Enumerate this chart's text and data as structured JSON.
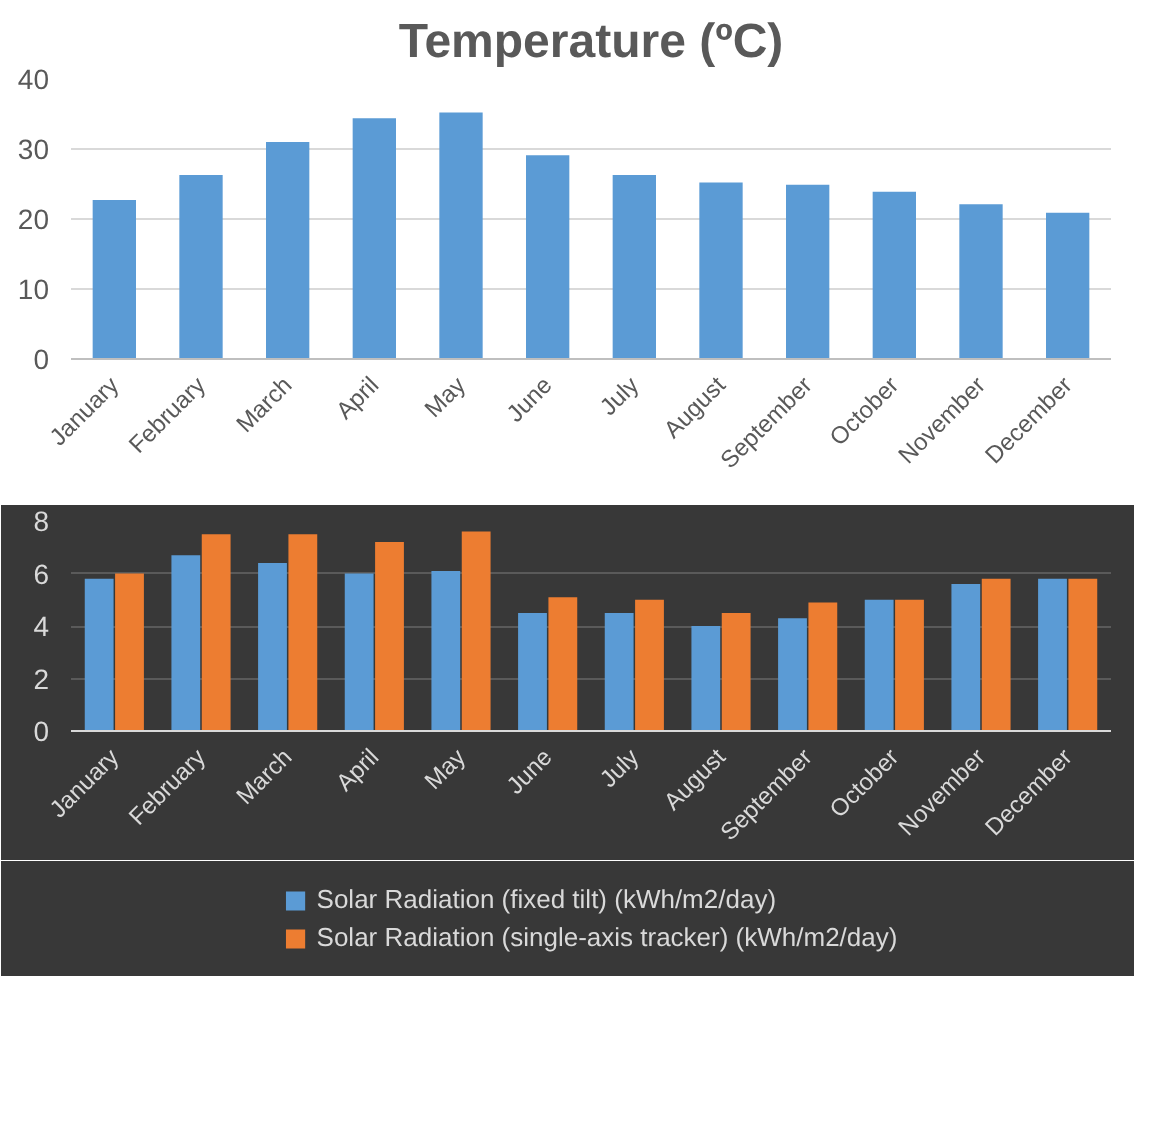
{
  "chart_data": [
    {
      "type": "bar",
      "title": "Temperature (ºC)",
      "categories": [
        "January",
        "February",
        "March",
        "April",
        "May",
        "June",
        "July",
        "August",
        "September",
        "October",
        "November",
        "December"
      ],
      "values": [
        22.7,
        26.3,
        31.0,
        34.4,
        35.2,
        29.1,
        26.3,
        25.2,
        24.9,
        23.9,
        22.1,
        20.9
      ],
      "color": "#5b9bd5",
      "ylim": [
        0,
        40
      ],
      "yticks": [
        0,
        10,
        20,
        30,
        40
      ],
      "grid": "y"
    },
    {
      "type": "bar",
      "categories": [
        "January",
        "February",
        "March",
        "April",
        "May",
        "June",
        "July",
        "August",
        "September",
        "October",
        "November",
        "December"
      ],
      "series": [
        {
          "name": "Solar Radiation (fixed tilt) (kWh/m2/day)",
          "color": "#5b9bd5",
          "values": [
            5.8,
            6.7,
            6.4,
            6.0,
            6.1,
            4.5,
            4.5,
            4.0,
            4.3,
            5.0,
            5.6,
            5.8
          ]
        },
        {
          "name": "Solar Radiation (single-axis tracker) (kWh/m2/day)",
          "color": "#ed7d31",
          "values": [
            6.0,
            7.5,
            7.5,
            7.2,
            7.6,
            5.1,
            5.0,
            4.5,
            4.9,
            5.0,
            5.8,
            5.8
          ]
        }
      ],
      "ylim": [
        0,
        8
      ],
      "yticks": [
        0,
        2,
        4,
        6,
        8
      ],
      "grid": "y",
      "legend": "bottom"
    }
  ]
}
